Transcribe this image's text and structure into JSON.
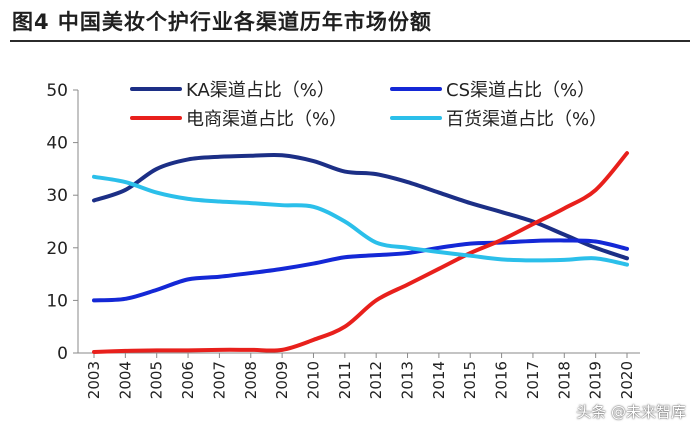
{
  "header": {
    "title": "图4  中国美妆个护行业各渠道历年市场份额"
  },
  "watermark": "头条 @未来智库",
  "chart_data": {
    "type": "line",
    "title": "",
    "xlabel": "",
    "ylabel": "",
    "ylim": [
      0,
      50
    ],
    "yticks": [
      0,
      10,
      20,
      30,
      40,
      50
    ],
    "x": [
      "2003",
      "2004",
      "2005",
      "2006",
      "2007",
      "2008",
      "2009",
      "2010",
      "2011",
      "2012",
      "2013",
      "2014",
      "2015",
      "2016",
      "2017",
      "2018",
      "2019",
      "2020"
    ],
    "legend_position": "top",
    "grid": false,
    "series": [
      {
        "name": "KA渠道占比（%）",
        "color": "#1c2f86",
        "values": [
          29.0,
          31.0,
          35.0,
          36.8,
          37.3,
          37.5,
          37.6,
          36.5,
          34.5,
          34.0,
          32.5,
          30.5,
          28.5,
          26.8,
          25.0,
          22.5,
          20.0,
          18.0
        ]
      },
      {
        "name": "CS渠道占比（%）",
        "color": "#1428d6",
        "values": [
          10.0,
          10.3,
          12.0,
          14.0,
          14.5,
          15.2,
          16.0,
          17.0,
          18.2,
          18.6,
          19.0,
          20.0,
          20.8,
          21.0,
          21.3,
          21.4,
          21.2,
          19.8
        ]
      },
      {
        "name": "电商渠道占比（%）",
        "color": "#e8201c",
        "values": [
          0.2,
          0.4,
          0.5,
          0.5,
          0.6,
          0.6,
          0.6,
          2.5,
          5.0,
          10.0,
          13.0,
          16.0,
          19.0,
          21.5,
          24.5,
          27.5,
          31.0,
          38.0
        ]
      },
      {
        "name": "百货渠道占比（%）",
        "color": "#2bbfea",
        "values": [
          33.5,
          32.5,
          30.5,
          29.3,
          28.8,
          28.5,
          28.1,
          27.8,
          25.0,
          21.0,
          20.0,
          19.2,
          18.5,
          17.8,
          17.6,
          17.7,
          18.0,
          16.8
        ]
      }
    ]
  }
}
